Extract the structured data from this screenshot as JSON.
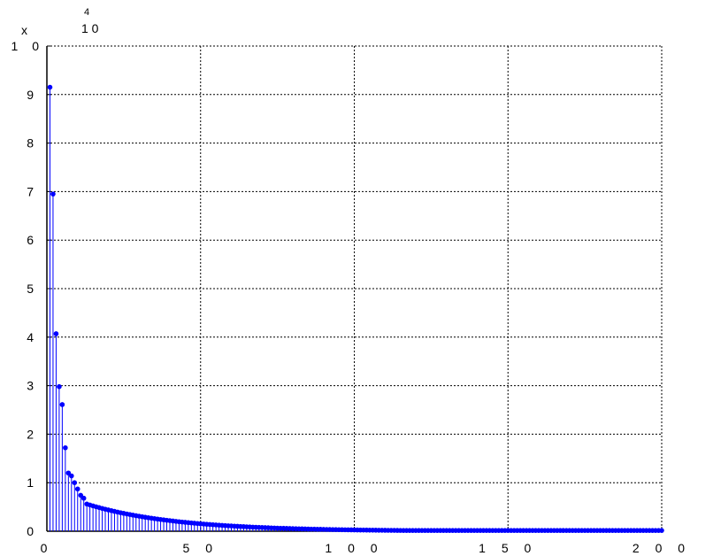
{
  "chart_data": {
    "type": "stem",
    "title": "",
    "xlabel": "",
    "ylabel": "",
    "xlim": [
      0,
      200
    ],
    "ylim": [
      0,
      10
    ],
    "grid": true,
    "color": "#0000ff",
    "x_ticks": [
      0,
      50,
      100,
      150,
      200
    ],
    "x_tick_labels": [
      "0",
      "5 0",
      "1 0 0",
      "1 5 0",
      "2 0 0"
    ],
    "y_ticks": [
      0,
      1,
      2,
      3,
      4,
      5,
      6,
      7,
      8,
      9,
      10
    ],
    "y_tick_labels": [
      "0",
      "1",
      "2",
      "3",
      "4",
      "5",
      "6",
      "7",
      "8",
      "9",
      "1 0"
    ],
    "exponent_label": {
      "prefix": "x",
      "base": "1 0",
      "power": "4"
    },
    "series": [
      {
        "head_values": [
          9.15,
          6.95,
          4.07,
          2.98,
          2.61,
          1.72,
          1.2,
          1.14,
          1.0,
          0.87,
          0.74,
          0.68
        ],
        "tail_start": 0.56,
        "tail_decay_rate": 0.035,
        "tail_floor": 0.015,
        "count": 200
      }
    ]
  }
}
